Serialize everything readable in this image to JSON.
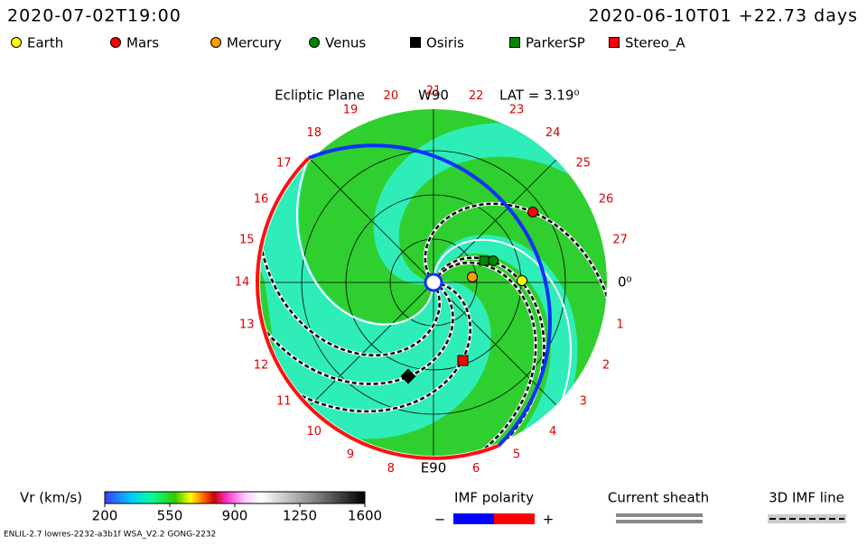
{
  "header": {
    "time": "2020-07-02T19:00",
    "run": "2020-06-10T01 +22.73 days"
  },
  "legend": [
    {
      "label": "Earth",
      "color": "#ffff00",
      "shape": "circle"
    },
    {
      "label": "Mars",
      "color": "#ff0000",
      "shape": "circle"
    },
    {
      "label": "Mercury",
      "color": "#ff9900",
      "shape": "circle"
    },
    {
      "label": "Venus",
      "color": "#008800",
      "shape": "circle"
    },
    {
      "label": "Osiris",
      "color": "#000000",
      "shape": "square"
    },
    {
      "label": "ParkerSP",
      "color": "#008800",
      "shape": "square"
    },
    {
      "label": "Stereo_A",
      "color": "#ff0000",
      "shape": "square"
    }
  ],
  "plot": {
    "title": "Ecliptic Plane",
    "top": "W90",
    "lat": "LAT = 3.19⁰",
    "bottom": "E90",
    "zero": "0⁰",
    "longitudes": [
      "1",
      "2",
      "3",
      "4",
      "5",
      "6",
      "8",
      "9",
      "10",
      "11",
      "12",
      "13",
      "14",
      "15",
      "16",
      "17",
      "18",
      "19",
      "20",
      "21",
      "22",
      "23",
      "24",
      "25",
      "26",
      "27"
    ]
  },
  "colorbar": {
    "label": "Vr (km/s)",
    "ticks": [
      200,
      550,
      900,
      1250,
      1600
    ]
  },
  "imf": {
    "title": "IMF polarity",
    "minus": "−",
    "plus": "+"
  },
  "sheath": "Current sheath",
  "imf_line": "3D IMF line",
  "footer": "ENLIL-2.7 lowres-2232-a3b1f WSA_V2.2 GONG-2232"
}
